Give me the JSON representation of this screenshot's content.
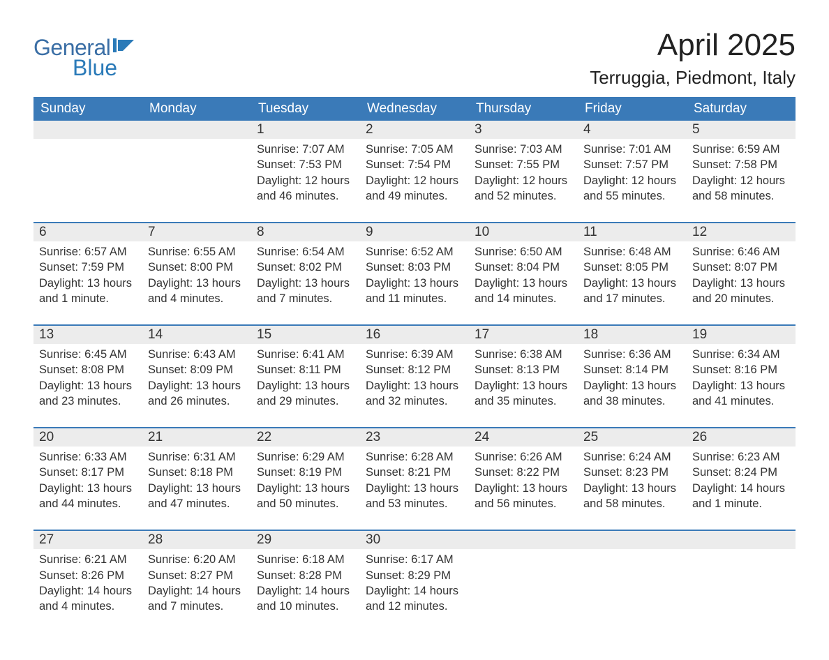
{
  "logo": {
    "word1": "General",
    "word2": "Blue"
  },
  "title": "April 2025",
  "location": "Terruggia, Piedmont, Italy",
  "colors": {
    "header_bg": "#3a7ab8",
    "header_text": "#ffffff",
    "daynum_bg": "#ececec",
    "week_border": "#3a7ab8",
    "text": "#333333",
    "logo_general": "#3a6ea5",
    "logo_blue": "#2a7ab8",
    "background": "#ffffff"
  },
  "typography": {
    "title_fontsize": 44,
    "location_fontsize": 26,
    "dow_fontsize": 19,
    "daynum_fontsize": 19,
    "detail_fontsize": 16.5,
    "font_family": "Arial"
  },
  "days_of_week": [
    "Sunday",
    "Monday",
    "Tuesday",
    "Wednesday",
    "Thursday",
    "Friday",
    "Saturday"
  ],
  "weeks": [
    [
      null,
      null,
      {
        "n": "1",
        "sr": "Sunrise: 7:07 AM",
        "ss": "Sunset: 7:53 PM",
        "d1": "Daylight: 12 hours",
        "d2": "and 46 minutes."
      },
      {
        "n": "2",
        "sr": "Sunrise: 7:05 AM",
        "ss": "Sunset: 7:54 PM",
        "d1": "Daylight: 12 hours",
        "d2": "and 49 minutes."
      },
      {
        "n": "3",
        "sr": "Sunrise: 7:03 AM",
        "ss": "Sunset: 7:55 PM",
        "d1": "Daylight: 12 hours",
        "d2": "and 52 minutes."
      },
      {
        "n": "4",
        "sr": "Sunrise: 7:01 AM",
        "ss": "Sunset: 7:57 PM",
        "d1": "Daylight: 12 hours",
        "d2": "and 55 minutes."
      },
      {
        "n": "5",
        "sr": "Sunrise: 6:59 AM",
        "ss": "Sunset: 7:58 PM",
        "d1": "Daylight: 12 hours",
        "d2": "and 58 minutes."
      }
    ],
    [
      {
        "n": "6",
        "sr": "Sunrise: 6:57 AM",
        "ss": "Sunset: 7:59 PM",
        "d1": "Daylight: 13 hours",
        "d2": "and 1 minute."
      },
      {
        "n": "7",
        "sr": "Sunrise: 6:55 AM",
        "ss": "Sunset: 8:00 PM",
        "d1": "Daylight: 13 hours",
        "d2": "and 4 minutes."
      },
      {
        "n": "8",
        "sr": "Sunrise: 6:54 AM",
        "ss": "Sunset: 8:02 PM",
        "d1": "Daylight: 13 hours",
        "d2": "and 7 minutes."
      },
      {
        "n": "9",
        "sr": "Sunrise: 6:52 AM",
        "ss": "Sunset: 8:03 PM",
        "d1": "Daylight: 13 hours",
        "d2": "and 11 minutes."
      },
      {
        "n": "10",
        "sr": "Sunrise: 6:50 AM",
        "ss": "Sunset: 8:04 PM",
        "d1": "Daylight: 13 hours",
        "d2": "and 14 minutes."
      },
      {
        "n": "11",
        "sr": "Sunrise: 6:48 AM",
        "ss": "Sunset: 8:05 PM",
        "d1": "Daylight: 13 hours",
        "d2": "and 17 minutes."
      },
      {
        "n": "12",
        "sr": "Sunrise: 6:46 AM",
        "ss": "Sunset: 8:07 PM",
        "d1": "Daylight: 13 hours",
        "d2": "and 20 minutes."
      }
    ],
    [
      {
        "n": "13",
        "sr": "Sunrise: 6:45 AM",
        "ss": "Sunset: 8:08 PM",
        "d1": "Daylight: 13 hours",
        "d2": "and 23 minutes."
      },
      {
        "n": "14",
        "sr": "Sunrise: 6:43 AM",
        "ss": "Sunset: 8:09 PM",
        "d1": "Daylight: 13 hours",
        "d2": "and 26 minutes."
      },
      {
        "n": "15",
        "sr": "Sunrise: 6:41 AM",
        "ss": "Sunset: 8:11 PM",
        "d1": "Daylight: 13 hours",
        "d2": "and 29 minutes."
      },
      {
        "n": "16",
        "sr": "Sunrise: 6:39 AM",
        "ss": "Sunset: 8:12 PM",
        "d1": "Daylight: 13 hours",
        "d2": "and 32 minutes."
      },
      {
        "n": "17",
        "sr": "Sunrise: 6:38 AM",
        "ss": "Sunset: 8:13 PM",
        "d1": "Daylight: 13 hours",
        "d2": "and 35 minutes."
      },
      {
        "n": "18",
        "sr": "Sunrise: 6:36 AM",
        "ss": "Sunset: 8:14 PM",
        "d1": "Daylight: 13 hours",
        "d2": "and 38 minutes."
      },
      {
        "n": "19",
        "sr": "Sunrise: 6:34 AM",
        "ss": "Sunset: 8:16 PM",
        "d1": "Daylight: 13 hours",
        "d2": "and 41 minutes."
      }
    ],
    [
      {
        "n": "20",
        "sr": "Sunrise: 6:33 AM",
        "ss": "Sunset: 8:17 PM",
        "d1": "Daylight: 13 hours",
        "d2": "and 44 minutes."
      },
      {
        "n": "21",
        "sr": "Sunrise: 6:31 AM",
        "ss": "Sunset: 8:18 PM",
        "d1": "Daylight: 13 hours",
        "d2": "and 47 minutes."
      },
      {
        "n": "22",
        "sr": "Sunrise: 6:29 AM",
        "ss": "Sunset: 8:19 PM",
        "d1": "Daylight: 13 hours",
        "d2": "and 50 minutes."
      },
      {
        "n": "23",
        "sr": "Sunrise: 6:28 AM",
        "ss": "Sunset: 8:21 PM",
        "d1": "Daylight: 13 hours",
        "d2": "and 53 minutes."
      },
      {
        "n": "24",
        "sr": "Sunrise: 6:26 AM",
        "ss": "Sunset: 8:22 PM",
        "d1": "Daylight: 13 hours",
        "d2": "and 56 minutes."
      },
      {
        "n": "25",
        "sr": "Sunrise: 6:24 AM",
        "ss": "Sunset: 8:23 PM",
        "d1": "Daylight: 13 hours",
        "d2": "and 58 minutes."
      },
      {
        "n": "26",
        "sr": "Sunrise: 6:23 AM",
        "ss": "Sunset: 8:24 PM",
        "d1": "Daylight: 14 hours",
        "d2": "and 1 minute."
      }
    ],
    [
      {
        "n": "27",
        "sr": "Sunrise: 6:21 AM",
        "ss": "Sunset: 8:26 PM",
        "d1": "Daylight: 14 hours",
        "d2": "and 4 minutes."
      },
      {
        "n": "28",
        "sr": "Sunrise: 6:20 AM",
        "ss": "Sunset: 8:27 PM",
        "d1": "Daylight: 14 hours",
        "d2": "and 7 minutes."
      },
      {
        "n": "29",
        "sr": "Sunrise: 6:18 AM",
        "ss": "Sunset: 8:28 PM",
        "d1": "Daylight: 14 hours",
        "d2": "and 10 minutes."
      },
      {
        "n": "30",
        "sr": "Sunrise: 6:17 AM",
        "ss": "Sunset: 8:29 PM",
        "d1": "Daylight: 14 hours",
        "d2": "and 12 minutes."
      },
      null,
      null,
      null
    ]
  ]
}
